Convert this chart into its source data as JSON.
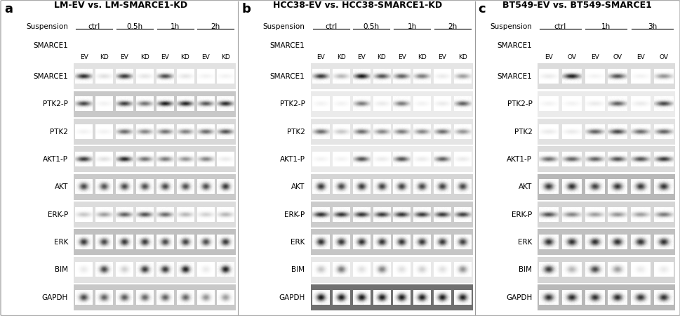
{
  "figure_bg": "#ffffff",
  "panels": [
    {
      "label": "a",
      "title_parts": [
        "LM-EV",
        " vs. ",
        "LM-SMARCE1-KD"
      ],
      "suspension_times": [
        "ctrl",
        "0.5h",
        "1h",
        "2h"
      ],
      "smarce1_cols": [
        "EV",
        "KD",
        "EV",
        "KD",
        "EV",
        "KD",
        "EV",
        "KD"
      ],
      "n_lanes": 8,
      "rows": [
        "SMARCE1",
        "PTK2-P",
        "PTK2",
        "AKT1-P",
        "AKT",
        "ERK-P",
        "ERK",
        "BIM",
        "GAPDH"
      ],
      "band_data": {
        "SMARCE1": [
          0.82,
          0.12,
          0.78,
          0.1,
          0.7,
          0.1,
          0.05,
          0.05
        ],
        "PTK2-P": [
          0.72,
          0.05,
          0.75,
          0.55,
          0.88,
          0.85,
          0.65,
          0.82
        ],
        "PTK2": [
          0.05,
          0.05,
          0.58,
          0.48,
          0.55,
          0.5,
          0.58,
          0.68
        ],
        "AKT1-P": [
          0.78,
          0.12,
          0.85,
          0.55,
          0.52,
          0.42,
          0.48,
          0.08
        ],
        "AKT": [
          0.72,
          0.68,
          0.72,
          0.7,
          0.72,
          0.7,
          0.7,
          0.78
        ],
        "ERK-P": [
          0.22,
          0.38,
          0.62,
          0.68,
          0.58,
          0.28,
          0.18,
          0.28
        ],
        "ERK": [
          0.78,
          0.72,
          0.78,
          0.78,
          0.72,
          0.75,
          0.7,
          0.78
        ],
        "BIM": [
          0.08,
          0.72,
          0.18,
          0.78,
          0.78,
          0.88,
          0.08,
          0.88
        ],
        "GAPDH": [
          0.72,
          0.62,
          0.65,
          0.6,
          0.62,
          0.6,
          0.42,
          0.38
        ]
      },
      "row_bg": {
        "SMARCE1": "#e2e2e2",
        "PTK2-P": "#c8c8c8",
        "PTK2": "#d8d8d8",
        "AKT1-P": "#d8d8d8",
        "AKT": "#cacaca",
        "ERK-P": "#dcdcdc",
        "ERK": "#c0c0c0",
        "BIM": "#e2e2e2",
        "GAPDH": "#c8c8c8"
      }
    },
    {
      "label": "b",
      "title_parts": [
        "HCC38-EV",
        " vs. ",
        "HCC38-SMARCE1-KD"
      ],
      "suspension_times": [
        "ctrl",
        "0.5h",
        "1h",
        "2h"
      ],
      "smarce1_cols": [
        "EV",
        "KD",
        "EV",
        "KD",
        "EV",
        "KD",
        "EV",
        "KD"
      ],
      "n_lanes": 8,
      "rows": [
        "SMARCE1",
        "PTK2-P",
        "PTK2",
        "AKT1-P",
        "AKT",
        "ERK-P",
        "ERK",
        "BIM",
        "GAPDH"
      ],
      "band_data": {
        "SMARCE1": [
          0.78,
          0.28,
          0.92,
          0.68,
          0.62,
          0.52,
          0.08,
          0.38
        ],
        "PTK2-P": [
          0.05,
          0.05,
          0.52,
          0.08,
          0.52,
          0.05,
          0.08,
          0.62
        ],
        "PTK2": [
          0.58,
          0.22,
          0.58,
          0.48,
          0.52,
          0.48,
          0.58,
          0.42
        ],
        "AKT1-P": [
          0.05,
          0.05,
          0.68,
          0.08,
          0.68,
          0.08,
          0.62,
          0.08
        ],
        "AKT": [
          0.78,
          0.72,
          0.78,
          0.75,
          0.75,
          0.73,
          0.75,
          0.73
        ],
        "ERK-P": [
          0.82,
          0.8,
          0.8,
          0.78,
          0.8,
          0.78,
          0.78,
          0.75
        ],
        "ERK": [
          0.82,
          0.8,
          0.82,
          0.8,
          0.8,
          0.79,
          0.79,
          0.75
        ],
        "BIM": [
          0.22,
          0.52,
          0.12,
          0.48,
          0.12,
          0.18,
          0.12,
          0.42
        ],
        "GAPDH": [
          0.92,
          0.9,
          0.92,
          0.9,
          0.91,
          0.89,
          0.9,
          0.88
        ]
      },
      "row_bg": {
        "SMARCE1": "#e5e5e5",
        "PTK2-P": "#ebebeb",
        "PTK2": "#e5e5e5",
        "AKT1-P": "#ebebeb",
        "AKT": "#d5d5d5",
        "ERK-P": "#cccccc",
        "ERK": "#c5c5c5",
        "BIM": "#e8e8e8",
        "GAPDH": "#707070"
      }
    },
    {
      "label": "c",
      "title_parts": [
        "BT549-EV",
        " vs. ",
        "BT549-SMARCE1"
      ],
      "suspension_times": [
        "ctrl",
        "1h",
        "3h"
      ],
      "smarce1_cols": [
        "EV",
        "OV",
        "EV",
        "OV",
        "EV",
        "OV"
      ],
      "n_lanes": 6,
      "rows": [
        "SMARCE1",
        "PTK2-P",
        "PTK2",
        "AKT1-P",
        "AKT",
        "ERK-P",
        "ERK",
        "BIM",
        "GAPDH"
      ],
      "band_data": {
        "SMARCE1": [
          0.08,
          0.88,
          0.05,
          0.68,
          0.05,
          0.42
        ],
        "PTK2-P": [
          0.05,
          0.05,
          0.08,
          0.62,
          0.08,
          0.72
        ],
        "PTK2": [
          0.08,
          0.08,
          0.62,
          0.72,
          0.58,
          0.62
        ],
        "AKT1-P": [
          0.58,
          0.62,
          0.62,
          0.68,
          0.68,
          0.78
        ],
        "AKT": [
          0.78,
          0.82,
          0.75,
          0.8,
          0.78,
          0.8
        ],
        "ERK-P": [
          0.68,
          0.48,
          0.38,
          0.42,
          0.38,
          0.52
        ],
        "ERK": [
          0.82,
          0.82,
          0.82,
          0.82,
          0.82,
          0.82
        ],
        "BIM": [
          0.78,
          0.28,
          0.72,
          0.38,
          0.08,
          0.08
        ],
        "GAPDH": [
          0.82,
          0.84,
          0.82,
          0.83,
          0.8,
          0.81
        ]
      },
      "row_bg": {
        "SMARCE1": "#dcdcdc",
        "PTK2-P": "#ebebeb",
        "PTK2": "#e2e2e2",
        "AKT1-P": "#dcdcdc",
        "AKT": "#b8b8b8",
        "ERK-P": "#d5d5d5",
        "ERK": "#c0c0c0",
        "BIM": "#d5d5d5",
        "GAPDH": "#b8b8b8"
      }
    }
  ],
  "label_fontsize": 13,
  "title_fontsize": 9,
  "row_label_fontsize": 7.5,
  "header_fontsize": 7.5,
  "col_label_fontsize": 6.5
}
